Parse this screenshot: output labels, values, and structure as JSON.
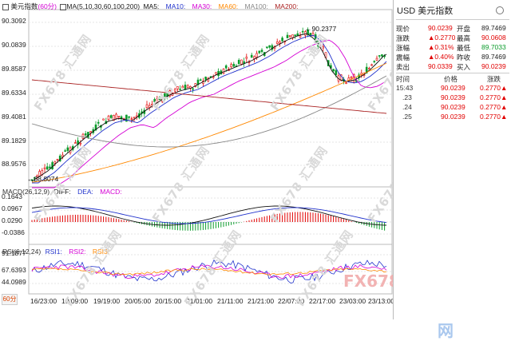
{
  "chart": {
    "title": "美元指数",
    "period": "(60分)",
    "ma_label": "MA(5,10,30,60,100,200)",
    "ma_legend": [
      "MA5:",
      "MA10:",
      "MA30:",
      "MA60:",
      "MA100:",
      "MA200:"
    ],
    "price_ticks": [
      "90.3092",
      "90.0839",
      "89.8587",
      "89.6334",
      "89.4081",
      "89.1829",
      "88.9576"
    ],
    "high_mark": "90.2377",
    "low_mark": "88.8074",
    "macd_label": "MACD(26,12,9)",
    "macd_legend": [
      "DIFF:",
      "DEA:",
      "MACD:"
    ],
    "macd_ticks": [
      "0.1643",
      "0.0967",
      "0.0290",
      "-0.0386"
    ],
    "rsi_label": "RSI(6,12,24)",
    "rsi_legend": [
      "RSI1:",
      "RSI2:",
      "RSI3:"
    ],
    "rsi_ticks": [
      "91.1877",
      "67.6393",
      "44.0989"
    ],
    "time_labels": [
      "16/23:00",
      "19/09:00",
      "19/19:00",
      "20/05:00",
      "20/15:00",
      "21/01:00",
      "21/11:00",
      "21/21:00",
      "22/07:00",
      "22/17:00",
      "23/03:00",
      "23/13:00"
    ],
    "period_selector": "60分",
    "watermarks": [
      "FX678 汇通网",
      "FX678 汇通网",
      "FX678 汇通网",
      "FX678 汇通网",
      "FX678 汇通网",
      "FX678 汇通网",
      "FX678 汇通网",
      "FX678 汇通网",
      "FX678 汇通网",
      "FX678 汇通网",
      "FX678 汇通网",
      "FX678 汇通网"
    ],
    "brand_en": "FX678",
    "brand_cn": "汇通网",
    "colors": {
      "up": "#e10000",
      "down": "#0a9b2b",
      "ma5": "#111111",
      "ma10": "#2233cc",
      "ma30": "#d400d4",
      "ma60": "#ff8800",
      "ma100": "#888888",
      "ma200": "#aa2222"
    }
  },
  "quote": {
    "title": "USD 美元指数",
    "rows": [
      {
        "k1": "现价",
        "v1": "90.0239",
        "k2": "开盘",
        "v2": "89.7469"
      },
      {
        "k1": "涨跌",
        "v1": "▲0.2770",
        "k2": "最高",
        "v2": "90.0608"
      },
      {
        "k1": "涨幅",
        "v1": "▲0.31%",
        "k2": "最低",
        "v2": "89.7033"
      },
      {
        "k1": "震幅",
        "v1": "▲0.40%",
        "k2": "昨收",
        "v2": "89.7469"
      },
      {
        "k1": "卖出",
        "v1": "90.0339",
        "k2": "买入",
        "v2": "90.0239"
      }
    ],
    "tick_header": {
      "time": "时间",
      "price": "价格",
      "chg": "涨跌"
    },
    "ticks": [
      {
        "time": "15:43",
        "price": "90.0239",
        "chg": "0.2770▲"
      },
      {
        "time": ".23",
        "price": "90.0239",
        "chg": "0.2770▲"
      },
      {
        "time": ".24",
        "price": "90.0239",
        "chg": "0.2770▲"
      },
      {
        "time": ".25",
        "price": "90.0239",
        "chg": "0.2770▲"
      }
    ]
  }
}
